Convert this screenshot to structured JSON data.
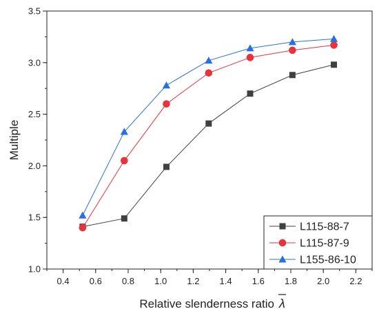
{
  "chart_data": {
    "type": "line",
    "xlabel": "Relative slenderness ratio",
    "xlabel_symbol": "λ",
    "ylabel": "Multiple",
    "xlim": [
      0.3,
      2.3
    ],
    "ylim": [
      1.0,
      3.5
    ],
    "xticks": [
      0.4,
      0.6,
      0.8,
      1.0,
      1.2,
      1.4,
      1.6,
      1.8,
      2.0,
      2.2
    ],
    "xtick_labels": [
      "0.4",
      "0.6",
      "0.8",
      "1.0",
      "1.2",
      "1.4",
      "1.6",
      "1.8",
      "2.0",
      "2.2"
    ],
    "yticks": [
      1.0,
      1.5,
      2.0,
      2.5,
      3.0,
      3.5
    ],
    "ytick_labels": [
      "1.0",
      "1.5",
      "2.0",
      "2.5",
      "3.0",
      "3.5"
    ],
    "grid": false,
    "legend_position": "bottom-right",
    "series": [
      {
        "name": "L115-88-7",
        "color": "#404040",
        "marker": "square",
        "x": [
          0.52,
          0.776,
          1.035,
          1.295,
          1.55,
          1.81,
          2.065
        ],
        "y": [
          1.41,
          1.49,
          1.99,
          2.41,
          2.7,
          2.88,
          2.98
        ]
      },
      {
        "name": "L115-87-9",
        "color": "#e8323c",
        "marker": "circle",
        "x": [
          0.52,
          0.776,
          1.035,
          1.295,
          1.55,
          1.81,
          2.065
        ],
        "y": [
          1.4,
          2.05,
          2.6,
          2.9,
          3.05,
          3.12,
          3.17
        ]
      },
      {
        "name": "L155-86-10",
        "color": "#2a6fe0",
        "marker": "triangle",
        "x": [
          0.52,
          0.776,
          1.035,
          1.295,
          1.55,
          1.81,
          2.065
        ],
        "y": [
          1.52,
          2.33,
          2.78,
          3.02,
          3.14,
          3.2,
          3.23
        ]
      }
    ]
  }
}
